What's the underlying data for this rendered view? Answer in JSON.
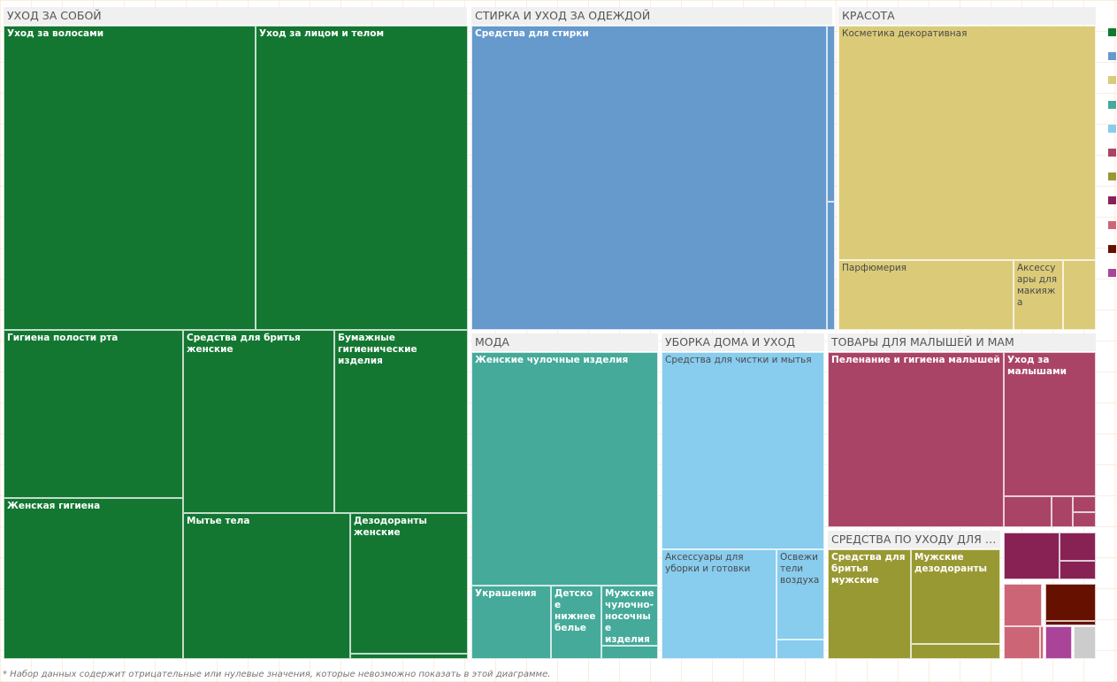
{
  "chart_data": {
    "type": "treemap",
    "groups": [
      {
        "name": "УХОД ЗА СОБОЙ",
        "color": "#137732",
        "text": "light",
        "items": [
          {
            "label": "Уход за волосами",
            "value": 98.3
          },
          {
            "label": "Уход за лицом и телом",
            "value": 82.6
          },
          {
            "label": "Гигиена полости рта",
            "value": 37.6
          },
          {
            "label": "Женская гигиена",
            "value": 34.0
          },
          {
            "label": "Средства для бритья женские",
            "value": 29.8
          },
          {
            "label": "Бумажные гигиенические изделия",
            "value": 21.3
          },
          {
            "label": "Мытье тела",
            "value": 30.3
          },
          {
            "label": "Дезодоранты женские",
            "value": 21.0
          },
          {
            "label": "",
            "value": 0.3
          }
        ]
      },
      {
        "name": "СТИРКА И УХОД ЗА ОДЕЖДОЙ",
        "color": "#6699cc",
        "text": "light",
        "items": [
          {
            "label": "Средства для стирки",
            "value": 126.7
          },
          {
            "label": "",
            "value": 2.2
          },
          {
            "label": "",
            "value": 1.2
          }
        ]
      },
      {
        "name": "КРАСОТА",
        "color": "#dbcb78",
        "text": "dark",
        "items": [
          {
            "label": "Косметика декоративная",
            "value": 76.8
          },
          {
            "label": "Парфюмерия",
            "value": 15.2
          },
          {
            "label": "Аксессуары для макияжа",
            "value": 4.9
          },
          {
            "label": "",
            "value": 3.3
          }
        ]
      },
      {
        "name": "МОДА",
        "color": "#45aa9a",
        "text": "light",
        "items": [
          {
            "label": "Женские чулочные изделия",
            "value": 48.0
          },
          {
            "label": "Украшения",
            "value": 7.1
          },
          {
            "label": "Детское нижнее белье",
            "value": 4.5
          },
          {
            "label": "Мужские чулочно-носочные изделия",
            "value": 4.5
          },
          {
            "label": "",
            "value": 0.9
          }
        ]
      },
      {
        "name": "УБОРКА ДОМА И УХОД",
        "color": "#88ccee",
        "text": "dark",
        "items": [
          {
            "label": "Средства для чистки и мытья",
            "value": 39.2
          },
          {
            "label": "Аксессуары для уборки и готовки",
            "value": 20.4
          },
          {
            "label": "Освежители воздуха",
            "value": 5.0
          },
          {
            "label": "",
            "value": 1.1
          }
        ]
      },
      {
        "name": "ТОВАРЫ ДЛЯ МАЛЫШЕЙ И МАМ",
        "color": "#aa4466",
        "text": "light",
        "items": [
          {
            "label": "Пеленание и гигиена малышей",
            "value": 27.4
          },
          {
            "label": "Уход за малышами",
            "value": 13.5
          },
          {
            "label": "",
            "value": 2.1
          },
          {
            "label": "",
            "value": 1.0
          },
          {
            "label": "",
            "value": 0.8
          },
          {
            "label": "",
            "value": 0.8
          }
        ]
      },
      {
        "name": "СРЕДСТВА ПО УХОДУ ДЛЯ МУ...",
        "color": "#999933",
        "text": "light",
        "items": [
          {
            "label": "Средства для бритья мужские",
            "value": 12.8
          },
          {
            "label": "Мужские дезодоранты",
            "value": 12.6
          },
          {
            "label": "",
            "value": 2.2
          }
        ]
      },
      {
        "name": "",
        "color": "#882255",
        "text": "light",
        "items": [
          {
            "label": "",
            "value": 3.7
          },
          {
            "label": "",
            "value": 2.0
          },
          {
            "label": "",
            "value": 0.4
          }
        ]
      },
      {
        "name": "",
        "color": "#cc6677",
        "text": "light",
        "items": [
          {
            "label": "",
            "value": 2.2
          },
          {
            "label": "",
            "value": 1.9
          },
          {
            "label": "",
            "value": 0.5
          }
        ]
      },
      {
        "name": "",
        "color": "#661100",
        "text": "light",
        "items": [
          {
            "label": "",
            "value": 2.9
          },
          {
            "label": "",
            "value": 0.4
          }
        ]
      },
      {
        "name": "",
        "color": "#aa4499",
        "text": "light",
        "items": [
          {
            "label": "",
            "value": 1.9
          }
        ]
      },
      {
        "name": "",
        "color": "#cccccc",
        "text": "light",
        "items": [
          {
            "label": "",
            "value": 1.3
          }
        ]
      }
    ],
    "legend": {
      "placement": "right",
      "colors": [
        "#137732",
        "#6699cc",
        "#dbcb78",
        "#45aa9a",
        "#88ccee",
        "#aa4466",
        "#999933",
        "#882255",
        "#cc6677",
        "#661100",
        "#aa4499"
      ]
    }
  },
  "footnote": "* Набор данных содержит отрицательные или нулевые значения, которые невозможно показать в этой диаграмме."
}
